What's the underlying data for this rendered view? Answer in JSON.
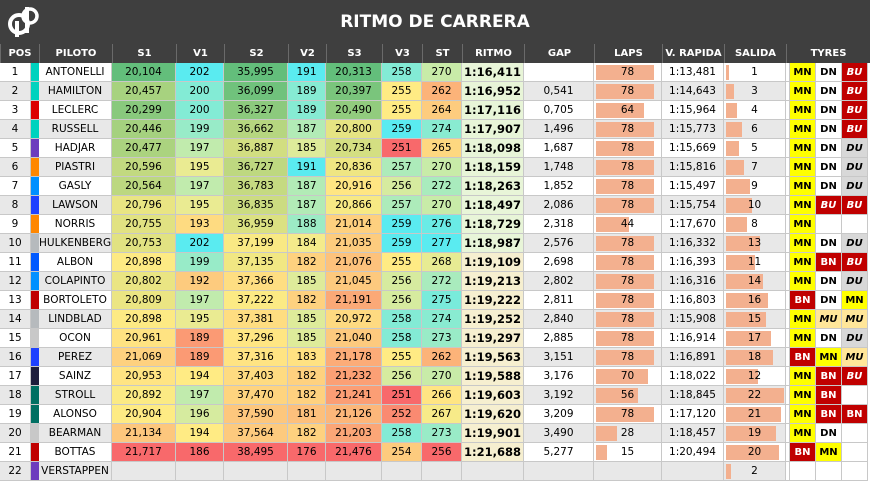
{
  "title": "RITMO DE CARRERA",
  "logo_text": "dP",
  "headers": [
    "POS",
    "PILOTO",
    "S1",
    "V1",
    "S2",
    "V2",
    "S3",
    "V3",
    "ST",
    "RITMO",
    "GAP",
    "LAPS",
    "V. RAPIDA",
    "SALIDA",
    "TYRES"
  ],
  "max_laps": 78,
  "max_salida": 22,
  "rows": [
    {
      "pos": "1",
      "team_color": "#00d2be",
      "driver": "ANTONELLI",
      "s1": "20,104",
      "v1": "202",
      "s2": "35,995",
      "v2": "191",
      "s3": "20,313",
      "v3": "258",
      "st": "270",
      "ritmo": "1:16,411",
      "gap": "",
      "laps": 78,
      "vrapida": "1:13,481",
      "salida": 1,
      "tyres": [
        "MN",
        "DN",
        "BU"
      ]
    },
    {
      "pos": "2",
      "team_color": "#00d2be",
      "driver": "HAMILTON",
      "s1": "20,457",
      "v1": "200",
      "s2": "36,099",
      "v2": "189",
      "s3": "20,397",
      "v3": "255",
      "st": "262",
      "ritmo": "1:16,952",
      "gap": "0,541",
      "laps": 78,
      "vrapida": "1:14,643",
      "salida": 3,
      "tyres": [
        "MN",
        "DN",
        "BU"
      ]
    },
    {
      "pos": "3",
      "team_color": "#dc0000",
      "driver": "LECLERC",
      "s1": "20,299",
      "v1": "200",
      "s2": "36,327",
      "v2": "189",
      "s3": "20,490",
      "v3": "255",
      "st": "264",
      "ritmo": "1:17,116",
      "gap": "0,705",
      "laps": 64,
      "vrapida": "1:15,964",
      "salida": 4,
      "tyres": [
        "MN",
        "DN",
        "BU"
      ]
    },
    {
      "pos": "4",
      "team_color": "#00d2be",
      "driver": "RUSSELL",
      "s1": "20,446",
      "v1": "199",
      "s2": "36,662",
      "v2": "187",
      "s3": "20,800",
      "v3": "259",
      "st": "274",
      "ritmo": "1:17,907",
      "gap": "1,496",
      "laps": 78,
      "vrapida": "1:15,773",
      "salida": 6,
      "tyres": [
        "MN",
        "DN",
        "BU"
      ]
    },
    {
      "pos": "5",
      "team_color": "#6c3cbe",
      "driver": "HADJAR",
      "s1": "20,477",
      "v1": "197",
      "s2": "36,887",
      "v2": "185",
      "s3": "20,734",
      "v3": "251",
      "st": "265",
      "ritmo": "1:18,098",
      "gap": "1,687",
      "laps": 78,
      "vrapida": "1:15,669",
      "salida": 5,
      "tyres": [
        "MN",
        "DN",
        "DU"
      ]
    },
    {
      "pos": "6",
      "team_color": "#ff8700",
      "driver": "PIASTRI",
      "s1": "20,596",
      "v1": "195",
      "s2": "36,727",
      "v2": "191",
      "s3": "20,836",
      "v3": "257",
      "st": "270",
      "ritmo": "1:18,159",
      "gap": "1,748",
      "laps": 78,
      "vrapida": "1:15,816",
      "salida": 7,
      "tyres": [
        "MN",
        "DN",
        "DU"
      ]
    },
    {
      "pos": "7",
      "team_color": "#0090ff",
      "driver": "GASLY",
      "s1": "20,564",
      "v1": "197",
      "s2": "36,783",
      "v2": "187",
      "s3": "20,916",
      "v3": "256",
      "st": "272",
      "ritmo": "1:18,263",
      "gap": "1,852",
      "laps": 78,
      "vrapida": "1:15,497",
      "salida": 9,
      "tyres": [
        "MN",
        "DN",
        "DU"
      ]
    },
    {
      "pos": "8",
      "team_color": "#1e41ff",
      "driver": "LAWSON",
      "s1": "20,796",
      "v1": "195",
      "s2": "36,835",
      "v2": "187",
      "s3": "20,866",
      "v3": "257",
      "st": "270",
      "ritmo": "1:18,497",
      "gap": "2,086",
      "laps": 78,
      "vrapida": "1:15,754",
      "salida": 10,
      "tyres": [
        "MN",
        "BU",
        "BU"
      ]
    },
    {
      "pos": "9",
      "team_color": "#ff8700",
      "driver": "NORRIS",
      "s1": "20,755",
      "v1": "193",
      "s2": "36,959",
      "v2": "188",
      "s3": "21,014",
      "v3": "259",
      "st": "276",
      "ritmo": "1:18,729",
      "gap": "2,318",
      "laps": 44,
      "vrapida": "1:17,670",
      "salida": 8,
      "tyres": [
        "MN",
        "",
        ""
      ]
    },
    {
      "pos": "10",
      "team_color": "#b6babd",
      "driver": "HULKENBERG",
      "s1": "20,753",
      "v1": "202",
      "s2": "37,199",
      "v2": "184",
      "s3": "21,035",
      "v3": "259",
      "st": "277",
      "ritmo": "1:18,987",
      "gap": "2,576",
      "laps": 78,
      "vrapida": "1:16,332",
      "salida": 13,
      "tyres": [
        "MN",
        "DN",
        "DU"
      ]
    },
    {
      "pos": "11",
      "team_color": "#005aff",
      "driver": "ALBON",
      "s1": "20,898",
      "v1": "199",
      "s2": "37,135",
      "v2": "182",
      "s3": "21,076",
      "v3": "255",
      "st": "268",
      "ritmo": "1:19,109",
      "gap": "2,698",
      "laps": 78,
      "vrapida": "1:16,393",
      "salida": 11,
      "tyres": [
        "MN",
        "BN",
        "BU"
      ]
    },
    {
      "pos": "12",
      "team_color": "#0090ff",
      "driver": "COLAPINTO",
      "s1": "20,802",
      "v1": "192",
      "s2": "37,366",
      "v2": "185",
      "s3": "21,045",
      "v3": "256",
      "st": "272",
      "ritmo": "1:19,213",
      "gap": "2,802",
      "laps": 78,
      "vrapida": "1:16,316",
      "salida": 14,
      "tyres": [
        "MN",
        "DN",
        "DU"
      ]
    },
    {
      "pos": "13",
      "team_color": "#c00000",
      "driver": "BORTOLETO",
      "s1": "20,809",
      "v1": "197",
      "s2": "37,222",
      "v2": "182",
      "s3": "21,191",
      "v3": "256",
      "st": "275",
      "ritmo": "1:19,222",
      "gap": "2,811",
      "laps": 78,
      "vrapida": "1:16,803",
      "salida": 16,
      "tyres": [
        "BN",
        "DN",
        "MN"
      ]
    },
    {
      "pos": "14",
      "team_color": "#b6babd",
      "driver": "LINDBLAD",
      "s1": "20,898",
      "v1": "195",
      "s2": "37,381",
      "v2": "185",
      "s3": "20,972",
      "v3": "258",
      "st": "274",
      "ritmo": "1:19,252",
      "gap": "2,840",
      "laps": 78,
      "vrapida": "1:15,908",
      "salida": 15,
      "tyres": [
        "MN",
        "MU",
        "MU"
      ]
    },
    {
      "pos": "15",
      "team_color": "#c8c8c8",
      "driver": "OCON",
      "s1": "20,961",
      "v1": "189",
      "s2": "37,296",
      "v2": "185",
      "s3": "21,040",
      "v3": "258",
      "st": "273",
      "ritmo": "1:19,297",
      "gap": "2,885",
      "laps": 78,
      "vrapida": "1:16,914",
      "salida": 17,
      "tyres": [
        "MN",
        "DN",
        "DU"
      ]
    },
    {
      "pos": "16",
      "team_color": "#1e41ff",
      "driver": "PEREZ",
      "s1": "21,069",
      "v1": "189",
      "s2": "37,316",
      "v2": "183",
      "s3": "21,178",
      "v3": "255",
      "st": "262",
      "ritmo": "1:19,563",
      "gap": "3,151",
      "laps": 78,
      "vrapida": "1:16,891",
      "salida": 18,
      "tyres": [
        "BN",
        "MN",
        "MU"
      ]
    },
    {
      "pos": "17",
      "team_color": "#1e1e3c",
      "driver": "SAINZ",
      "s1": "20,953",
      "v1": "194",
      "s2": "37,403",
      "v2": "182",
      "s3": "21,232",
      "v3": "256",
      "st": "270",
      "ritmo": "1:19,588",
      "gap": "3,176",
      "laps": 70,
      "vrapida": "1:18,022",
      "salida": 12,
      "tyres": [
        "MN",
        "BN",
        "BU"
      ]
    },
    {
      "pos": "18",
      "team_color": "#006f62",
      "driver": "STROLL",
      "s1": "20,892",
      "v1": "197",
      "s2": "37,470",
      "v2": "182",
      "s3": "21,241",
      "v3": "251",
      "st": "266",
      "ritmo": "1:19,603",
      "gap": "3,192",
      "laps": 56,
      "vrapida": "1:18,845",
      "salida": 22,
      "tyres": [
        "MN",
        "BN",
        ""
      ]
    },
    {
      "pos": "19",
      "team_color": "#006f62",
      "driver": "ALONSO",
      "s1": "20,904",
      "v1": "196",
      "s2": "37,590",
      "v2": "181",
      "s3": "21,126",
      "v3": "252",
      "st": "267",
      "ritmo": "1:19,620",
      "gap": "3,209",
      "laps": 78,
      "vrapida": "1:17,120",
      "salida": 21,
      "tyres": [
        "MN",
        "BN",
        "BN"
      ]
    },
    {
      "pos": "20",
      "team_color": "#c8c8c8",
      "driver": "BEARMAN",
      "s1": "21,134",
      "v1": "194",
      "s2": "37,564",
      "v2": "182",
      "s3": "21,203",
      "v3": "258",
      "st": "273",
      "ritmo": "1:19,901",
      "gap": "3,490",
      "laps": 28,
      "vrapida": "1:18,457",
      "salida": 19,
      "tyres": [
        "MN",
        "DN",
        ""
      ]
    },
    {
      "pos": "21",
      "team_color": "#c00000",
      "driver": "BOTTAS",
      "s1": "21,717",
      "v1": "186",
      "s2": "38,495",
      "v2": "176",
      "s3": "21,476",
      "v3": "254",
      "st": "256",
      "ritmo": "1:21,688",
      "gap": "5,277",
      "laps": 15,
      "vrapida": "1:20,494",
      "salida": 20,
      "tyres": [
        "BN",
        "MN",
        ""
      ]
    },
    {
      "pos": "22",
      "team_color": "#6c3cbe",
      "driver": "VERSTAPPEN",
      "s1": "",
      "v1": "",
      "s2": "",
      "v2": "",
      "s3": "",
      "v3": "",
      "st": "",
      "ritmo": "",
      "gap": "",
      "laps": null,
      "vrapida": "",
      "salida": 2,
      "tyres": [
        "",
        "",
        ""
      ]
    }
  ]
}
